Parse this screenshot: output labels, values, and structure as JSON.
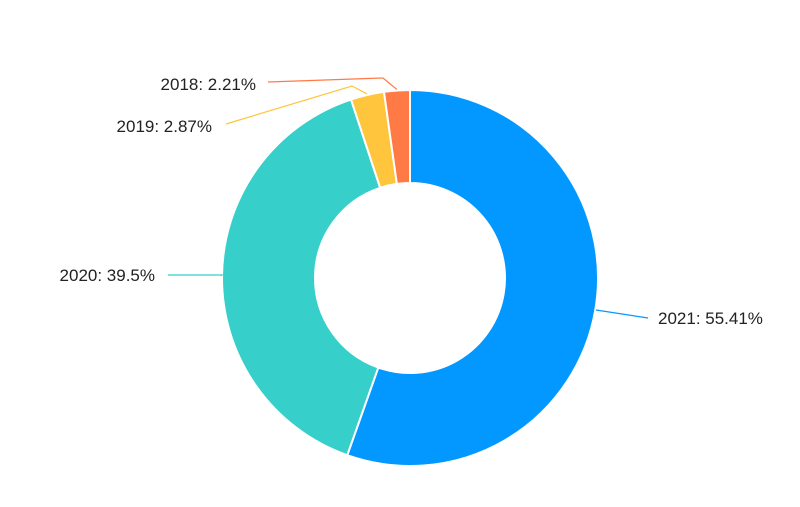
{
  "chart_data": {
    "type": "pie",
    "variant": "donut",
    "slices": [
      {
        "category": "2021",
        "label": "2021: 55.41%",
        "value": 55.41,
        "color": "#0398ff"
      },
      {
        "category": "2020",
        "label": "2020: 39.5%",
        "value": 39.5,
        "color": "#36cfc9"
      },
      {
        "category": "2019",
        "label": "2019: 2.87%",
        "value": 2.87,
        "color": "#ffc53d"
      },
      {
        "category": "2018",
        "label": "2018: 2.21%",
        "value": 2.21,
        "color": "#ff7a45"
      }
    ],
    "start_angle_deg": 0,
    "direction": "clockwise",
    "label_position": "outside with leader lines"
  }
}
